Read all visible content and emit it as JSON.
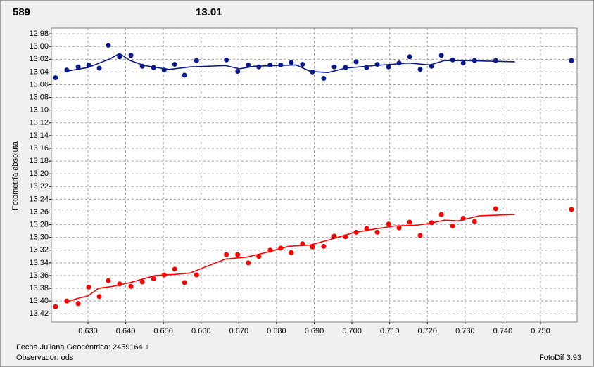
{
  "chart_data": {
    "type": "scatter",
    "header_labels": [
      {
        "text": "589",
        "color": "#ff0000"
      },
      {
        "text": "13.01",
        "color": "#0a1a8c"
      }
    ],
    "ylabel": "Fotometría absoluta",
    "xlabel": "Fecha Juliana Geocéntrica: 2459164 +",
    "xlim": [
      0.6203,
      0.7597
    ],
    "ylim": [
      13.433,
      12.971
    ],
    "grid": true,
    "xticks": [
      {
        "value": 0.63,
        "label": "0.630"
      },
      {
        "value": 0.64,
        "label": "0.640"
      },
      {
        "value": 0.65,
        "label": "0.650"
      },
      {
        "value": 0.66,
        "label": "0.660"
      },
      {
        "value": 0.67,
        "label": "0.670"
      },
      {
        "value": 0.68,
        "label": "0.680"
      },
      {
        "value": 0.69,
        "label": "0.690"
      },
      {
        "value": 0.7,
        "label": "0.700"
      },
      {
        "value": 0.71,
        "label": "0.710"
      },
      {
        "value": 0.72,
        "label": "0.720"
      },
      {
        "value": 0.73,
        "label": "0.730"
      },
      {
        "value": 0.74,
        "label": "0.740"
      },
      {
        "value": 0.75,
        "label": "0.750"
      }
    ],
    "yticks": [
      12.98,
      {
        "value": 13.0,
        "label": "13.00"
      },
      13.02,
      13.04,
      13.06,
      13.08,
      {
        "value": 13.1,
        "label": "13.10"
      },
      13.12,
      13.14,
      13.16,
      13.18,
      {
        "value": 13.2,
        "label": "13.20"
      },
      13.22,
      13.24,
      13.26,
      13.28,
      {
        "value": 13.3,
        "label": "13.30"
      },
      13.32,
      13.34,
      13.36,
      13.38,
      {
        "value": 13.4,
        "label": "13.40"
      },
      13.42
    ],
    "series": [
      {
        "color": "#0a1a8c",
        "x": [
          0.6214,
          0.6244,
          0.6274,
          0.6302,
          0.633,
          0.6354,
          0.6384,
          0.6414,
          0.6444,
          0.6474,
          0.6502,
          0.653,
          0.6556,
          0.6588,
          0.6667,
          0.6697,
          0.6725,
          0.6753,
          0.6783,
          0.6811,
          0.6839,
          0.6869,
          0.6895,
          0.6925,
          0.6953,
          0.6983,
          0.7011,
          0.7039,
          0.7067,
          0.7097,
          0.7125,
          0.7153,
          0.7181,
          0.7211,
          0.7237,
          0.7267,
          0.7295,
          0.7325,
          0.7381,
          0.7582
        ],
        "values": [
          13.049,
          13.037,
          13.032,
          13.029,
          13.034,
          12.998,
          13.016,
          13.014,
          13.031,
          13.033,
          13.037,
          13.028,
          13.045,
          13.022,
          13.021,
          13.039,
          13.029,
          13.032,
          13.029,
          13.029,
          13.025,
          13.028,
          13.04,
          13.05,
          13.032,
          13.033,
          13.024,
          13.033,
          13.028,
          13.032,
          13.026,
          13.016,
          13.036,
          13.031,
          13.014,
          13.021,
          13.026,
          13.022,
          13.022,
          13.022
        ],
        "trend_x": [
          0.624,
          0.63,
          0.6356,
          0.6384,
          0.6412,
          0.645,
          0.6515,
          0.6571,
          0.6665,
          0.6702,
          0.674,
          0.6852,
          0.6889,
          0.6936,
          0.6983,
          0.7058,
          0.7151,
          0.7207,
          0.7245,
          0.7301,
          0.7432
        ],
        "trend_values": [
          13.039,
          13.033,
          13.02,
          13.011,
          13.022,
          13.03,
          13.036,
          13.032,
          13.03,
          13.035,
          13.031,
          13.029,
          13.039,
          13.041,
          13.034,
          13.03,
          13.026,
          13.029,
          13.022,
          13.022,
          13.024
        ]
      },
      {
        "color": "#ff0000",
        "x": [
          0.6214,
          0.6244,
          0.6274,
          0.6302,
          0.633,
          0.6354,
          0.6384,
          0.6414,
          0.6444,
          0.6474,
          0.6502,
          0.653,
          0.6556,
          0.6588,
          0.6667,
          0.6697,
          0.6725,
          0.6753,
          0.6783,
          0.6811,
          0.6839,
          0.6869,
          0.6895,
          0.6925,
          0.6953,
          0.6983,
          0.7011,
          0.7039,
          0.7067,
          0.7097,
          0.7125,
          0.7153,
          0.7181,
          0.7211,
          0.7237,
          0.7267,
          0.7295,
          0.7325,
          0.7381,
          0.7582
        ],
        "values": [
          13.409,
          13.4,
          13.404,
          13.378,
          13.393,
          13.368,
          13.373,
          13.377,
          13.37,
          13.365,
          13.359,
          13.35,
          13.371,
          13.359,
          13.327,
          13.327,
          13.34,
          13.33,
          13.32,
          13.317,
          13.324,
          13.31,
          13.315,
          13.314,
          13.298,
          13.299,
          13.292,
          13.286,
          13.292,
          13.279,
          13.285,
          13.276,
          13.297,
          13.277,
          13.264,
          13.282,
          13.27,
          13.275,
          13.255,
          13.256
        ],
        "trend_x": [
          0.624,
          0.6272,
          0.63,
          0.6328,
          0.6365,
          0.6412,
          0.6478,
          0.6534,
          0.6571,
          0.6609,
          0.6665,
          0.6721,
          0.6777,
          0.6833,
          0.6889,
          0.6945,
          0.7002,
          0.7058,
          0.7114,
          0.717,
          0.7207,
          0.7245,
          0.7282,
          0.7338,
          0.7432
        ],
        "trend_values": [
          13.402,
          13.396,
          13.392,
          13.38,
          13.377,
          13.371,
          13.36,
          13.358,
          13.356,
          13.347,
          13.334,
          13.331,
          13.323,
          13.314,
          13.312,
          13.303,
          13.293,
          13.287,
          13.282,
          13.281,
          13.278,
          13.273,
          13.274,
          13.266,
          13.264
        ]
      }
    ]
  },
  "footer": {
    "observer": "Observador: ods",
    "software": "FotoDif 3.93"
  }
}
